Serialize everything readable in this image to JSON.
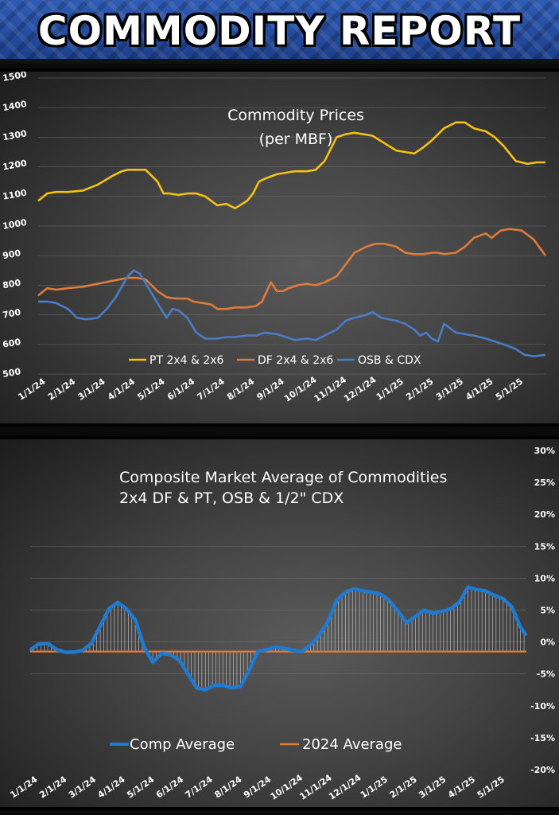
{
  "header": {
    "title": "COMMODITY REPORT"
  },
  "chart_data": [
    {
      "type": "line",
      "title": "Commodity Prices",
      "subtitle": "(per MBF)",
      "ylim": [
        500,
        1500
      ],
      "yticks": [
        500,
        600,
        700,
        800,
        900,
        1000,
        1100,
        1200,
        1300,
        1400,
        1500
      ],
      "xlim": [
        0,
        17
      ],
      "xticks": [
        "1/1/24",
        "2/1/24",
        "3/1/24",
        "4/1/24",
        "5/1/24",
        "6/1/24",
        "7/1/24",
        "8/1/24",
        "9/1/24",
        "10/1/24",
        "11/1/24",
        "12/1/24",
        "1/1/25",
        "2/1/25",
        "3/1/25",
        "4/1/25",
        "5/1/25"
      ],
      "grid": true,
      "legend": "bottom",
      "series": [
        {
          "name": "PT 2x4 & 2x6",
          "color": "#f5c211",
          "x": [
            0,
            0.3,
            0.6,
            1,
            1.5,
            2,
            2.5,
            2.8,
            3,
            3.3,
            3.6,
            4,
            4.2,
            4.4,
            4.7,
            5,
            5.3,
            5.6,
            6,
            6.3,
            6.6,
            7,
            7.2,
            7.4,
            7.6,
            8,
            8.3,
            8.6,
            9,
            9.3,
            9.6,
            10,
            10.3,
            10.6,
            10.9,
            11.2,
            11.6,
            12,
            12.3,
            12.6,
            12.9,
            13.2,
            13.6,
            14,
            14.3,
            14.6,
            15,
            15.3,
            15.6,
            16,
            16.4,
            16.7,
            17
          ],
          "values": [
            1085,
            1110,
            1115,
            1115,
            1120,
            1140,
            1170,
            1185,
            1190,
            1190,
            1190,
            1150,
            1110,
            1110,
            1105,
            1110,
            1110,
            1100,
            1070,
            1075,
            1060,
            1085,
            1110,
            1150,
            1160,
            1175,
            1180,
            1185,
            1185,
            1190,
            1220,
            1300,
            1310,
            1315,
            1310,
            1305,
            1280,
            1255,
            1250,
            1245,
            1265,
            1290,
            1330,
            1350,
            1350,
            1330,
            1320,
            1300,
            1270,
            1220,
            1210,
            1215,
            1215
          ]
        },
        {
          "name": "DF 2x4 & 2x6",
          "color": "#e07b39",
          "x": [
            0,
            0.3,
            0.6,
            1,
            1.5,
            2,
            2.5,
            3,
            3.3,
            3.6,
            4,
            4.3,
            4.6,
            5,
            5.2,
            5.5,
            5.8,
            6,
            6.3,
            6.6,
            7,
            7.3,
            7.5,
            7.8,
            8,
            8.2,
            8.4,
            8.7,
            9,
            9.3,
            9.6,
            10,
            10.3,
            10.6,
            11,
            11.3,
            11.6,
            12,
            12.3,
            12.6,
            12.9,
            13.2,
            13.4,
            13.6,
            14,
            14.3,
            14.6,
            15,
            15.2,
            15.5,
            15.8,
            16.2,
            16.6,
            17
          ],
          "values": [
            765,
            790,
            785,
            790,
            795,
            805,
            815,
            825,
            825,
            820,
            780,
            760,
            755,
            755,
            745,
            740,
            735,
            720,
            720,
            725,
            725,
            730,
            745,
            810,
            780,
            780,
            790,
            800,
            805,
            800,
            810,
            830,
            870,
            910,
            930,
            940,
            940,
            930,
            910,
            905,
            905,
            910,
            910,
            905,
            910,
            930,
            960,
            975,
            960,
            985,
            990,
            985,
            955,
            900
          ]
        },
        {
          "name": "OSB & CDX",
          "color": "#4a7cc7",
          "x": [
            0,
            0.3,
            0.6,
            1,
            1.3,
            1.6,
            2,
            2.3,
            2.6,
            3,
            3.2,
            3.4,
            3.7,
            4,
            4.3,
            4.5,
            4.7,
            5,
            5.3,
            5.6,
            6,
            6.3,
            6.6,
            7,
            7.3,
            7.6,
            8,
            8.3,
            8.6,
            9,
            9.3,
            9.6,
            10,
            10.3,
            10.6,
            11,
            11.2,
            11.5,
            12,
            12.3,
            12.6,
            12.8,
            13,
            13.2,
            13.4,
            13.6,
            14,
            14.3,
            14.6,
            15,
            15.3,
            15.6,
            16,
            16.3,
            16.6,
            17
          ],
          "values": [
            745,
            745,
            740,
            720,
            690,
            685,
            690,
            720,
            760,
            830,
            850,
            840,
            790,
            740,
            690,
            720,
            715,
            690,
            640,
            620,
            620,
            625,
            625,
            630,
            630,
            640,
            635,
            625,
            615,
            620,
            615,
            630,
            650,
            680,
            690,
            700,
            710,
            690,
            680,
            670,
            650,
            630,
            640,
            620,
            610,
            670,
            640,
            635,
            630,
            620,
            610,
            600,
            585,
            565,
            560,
            565
          ]
        }
      ]
    },
    {
      "type": "area",
      "title": "Composite Market Average of Commodities",
      "subtitle": "2x4 DF & PT, OSB & 1/2\" CDX",
      "ylim": [
        -20,
        30
      ],
      "yticks": [
        "30%",
        "25%",
        "20%",
        "15%",
        "10%",
        "5%",
        "0%",
        "-5%",
        "-10%",
        "-15%",
        "-20%"
      ],
      "ytick_values": [
        30,
        25,
        20,
        15,
        10,
        5,
        0,
        -5,
        -10,
        -15,
        -20
      ],
      "xlim": [
        0,
        17
      ],
      "xticks": [
        "1/1/24",
        "2/1/24",
        "3/1/24",
        "4/1/24",
        "5/1/24",
        "6/1/24",
        "7/1/24",
        "8/1/24",
        "9/1/24",
        "10/1/24",
        "11/1/24",
        "12/1/24",
        "1/1/25",
        "2/1/25",
        "3/1/25",
        "4/1/25",
        "5/1/25"
      ],
      "grid": true,
      "legend": "bottom",
      "baseline": {
        "name": "2024 Average",
        "color": "#e07b39",
        "value": -1.5
      },
      "series": [
        {
          "name": "Comp Average",
          "color": "#1f7ad1",
          "x": [
            0,
            0.3,
            0.6,
            0.9,
            1.2,
            1.5,
            1.8,
            2.1,
            2.4,
            2.7,
            3,
            3.3,
            3.6,
            3.9,
            4.2,
            4.5,
            4.8,
            5.1,
            5.4,
            5.7,
            6,
            6.3,
            6.6,
            6.9,
            7.2,
            7.5,
            7.8,
            8.1,
            8.4,
            8.7,
            9,
            9.3,
            9.6,
            9.9,
            10.2,
            10.5,
            10.8,
            11.1,
            11.4,
            11.7,
            12,
            12.3,
            12.6,
            12.9,
            13.2,
            13.5,
            13.8,
            14.1,
            14.4,
            14.7,
            15,
            15.3,
            15.6,
            15.9,
            16.2,
            16.5,
            16.8,
            17
          ],
          "values": [
            -1.2,
            -0.3,
            -0.2,
            -1.2,
            -1.6,
            -1.6,
            -1.3,
            -0.2,
            2.5,
            5.2,
            6.2,
            5.2,
            3.5,
            -0.8,
            -3.2,
            -1.8,
            -2.0,
            -2.8,
            -5.0,
            -7.2,
            -7.5,
            -6.8,
            -6.8,
            -7.2,
            -7.0,
            -4.5,
            -1.5,
            -1.2,
            -0.8,
            -1.0,
            -1.3,
            -1.5,
            -0.5,
            1.0,
            3.2,
            6.5,
            7.8,
            8.3,
            8.0,
            7.8,
            7.5,
            6.5,
            4.8,
            3.0,
            4.0,
            5.0,
            4.5,
            4.8,
            5.2,
            6.2,
            8.6,
            8.2,
            8.0,
            7.3,
            6.8,
            5.5,
            2.3,
            1.0
          ]
        }
      ]
    }
  ]
}
